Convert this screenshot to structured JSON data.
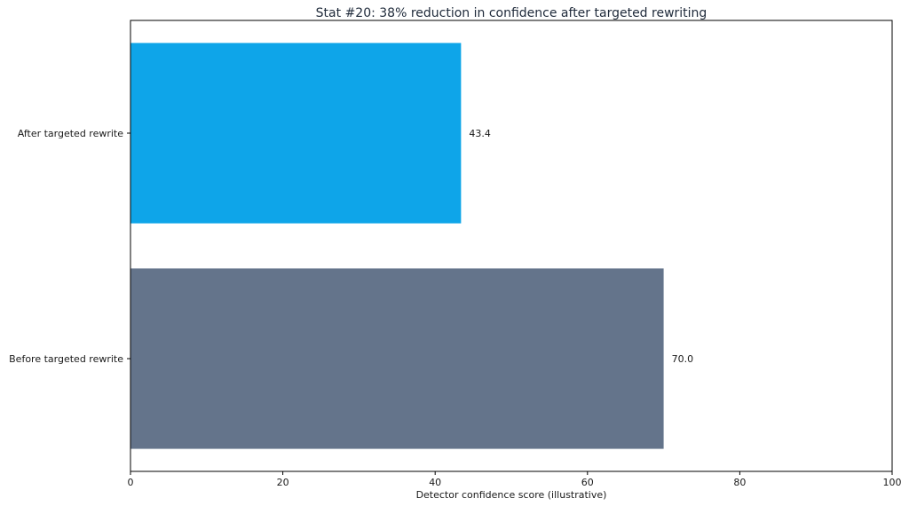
{
  "chart_data": {
    "type": "bar",
    "orientation": "horizontal",
    "title": "Stat #20: 38% reduction in confidence after targeted rewriting",
    "xlabel": "Detector confidence score (illustrative)",
    "ylabel": "",
    "xlim": [
      0,
      100
    ],
    "x_ticks": [
      0,
      20,
      40,
      60,
      80,
      100
    ],
    "categories": [
      "Before targeted rewrite",
      "After targeted rewrite"
    ],
    "values": [
      70.0,
      43.4
    ],
    "value_labels": [
      "70.0",
      "43.4"
    ],
    "colors": [
      "#64748b",
      "#0ea5e9"
    ],
    "grid": false,
    "legend": false
  }
}
